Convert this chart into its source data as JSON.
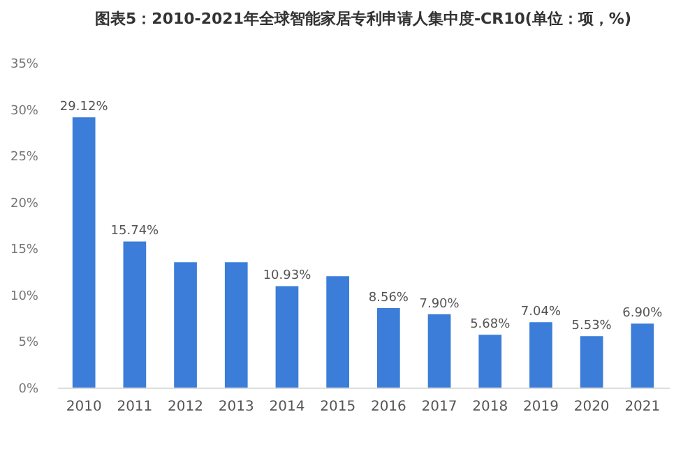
{
  "chart_data": {
    "type": "bar",
    "title": "图表5：2010-2021年全球智能家居专利申请人集中度-CR10(单位：项，%)",
    "categories": [
      "2010",
      "2011",
      "2012",
      "2013",
      "2014",
      "2015",
      "2016",
      "2017",
      "2018",
      "2019",
      "2020",
      "2021"
    ],
    "values": [
      29.12,
      15.74,
      13.5,
      13.5,
      10.93,
      12,
      8.56,
      7.9,
      5.68,
      7.04,
      5.53,
      6.9
    ],
    "value_labels": [
      "29.12%",
      "15.74%",
      null,
      null,
      "10.93%",
      null,
      "8.56%",
      "7.90%",
      "5.68%",
      "7.04%",
      "5.53%",
      "6.90%"
    ],
    "color": "#3b7dd8",
    "ylim": [
      0,
      35
    ],
    "yticks": [
      {
        "value": 0,
        "label": "0%"
      },
      {
        "value": 5,
        "label": "5%"
      },
      {
        "value": 10,
        "label": "10%"
      },
      {
        "value": 15,
        "label": "15%"
      },
      {
        "value": 20,
        "label": "20%"
      },
      {
        "value": 25,
        "label": "25%"
      },
      {
        "value": 30,
        "label": "30%"
      },
      {
        "value": 35,
        "label": "35%"
      }
    ],
    "grid": false
  }
}
